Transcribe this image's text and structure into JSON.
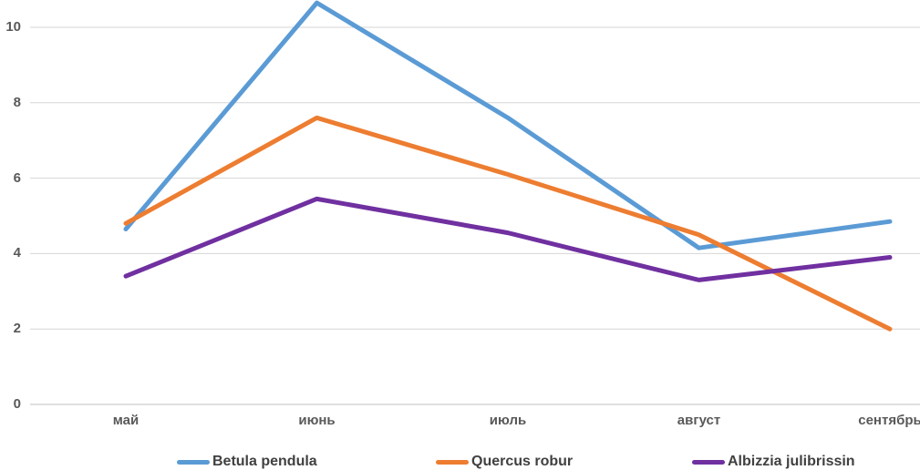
{
  "chart_data": {
    "type": "line",
    "title": "",
    "xlabel": "",
    "ylabel": "",
    "categories": [
      "май",
      "июнь",
      "июль",
      "август",
      "сентябрь"
    ],
    "series": [
      {
        "name": "Betula pendula",
        "color": "#5B9BD5",
        "values": [
          4.65,
          10.65,
          7.6,
          4.15,
          4.85
        ]
      },
      {
        "name": "Quercus robur",
        "color": "#ED7D31",
        "values": [
          4.8,
          7.6,
          6.1,
          4.5,
          2.0
        ]
      },
      {
        "name": "Albizzia julibrissin",
        "color": "#7030A0",
        "values": [
          3.4,
          5.45,
          4.55,
          3.3,
          3.9
        ]
      }
    ],
    "y_ticks": [
      0,
      2,
      4,
      6,
      8,
      10
    ],
    "ylim": [
      0,
      10.8
    ],
    "grid": true,
    "legend_position": "bottom",
    "axis_text_color": "#595959",
    "legend_text_color": "#404040",
    "gridline_color": "#D6D6D6",
    "zero_line_color": "#BFBFBF",
    "background_color": "#FFFFFF"
  }
}
